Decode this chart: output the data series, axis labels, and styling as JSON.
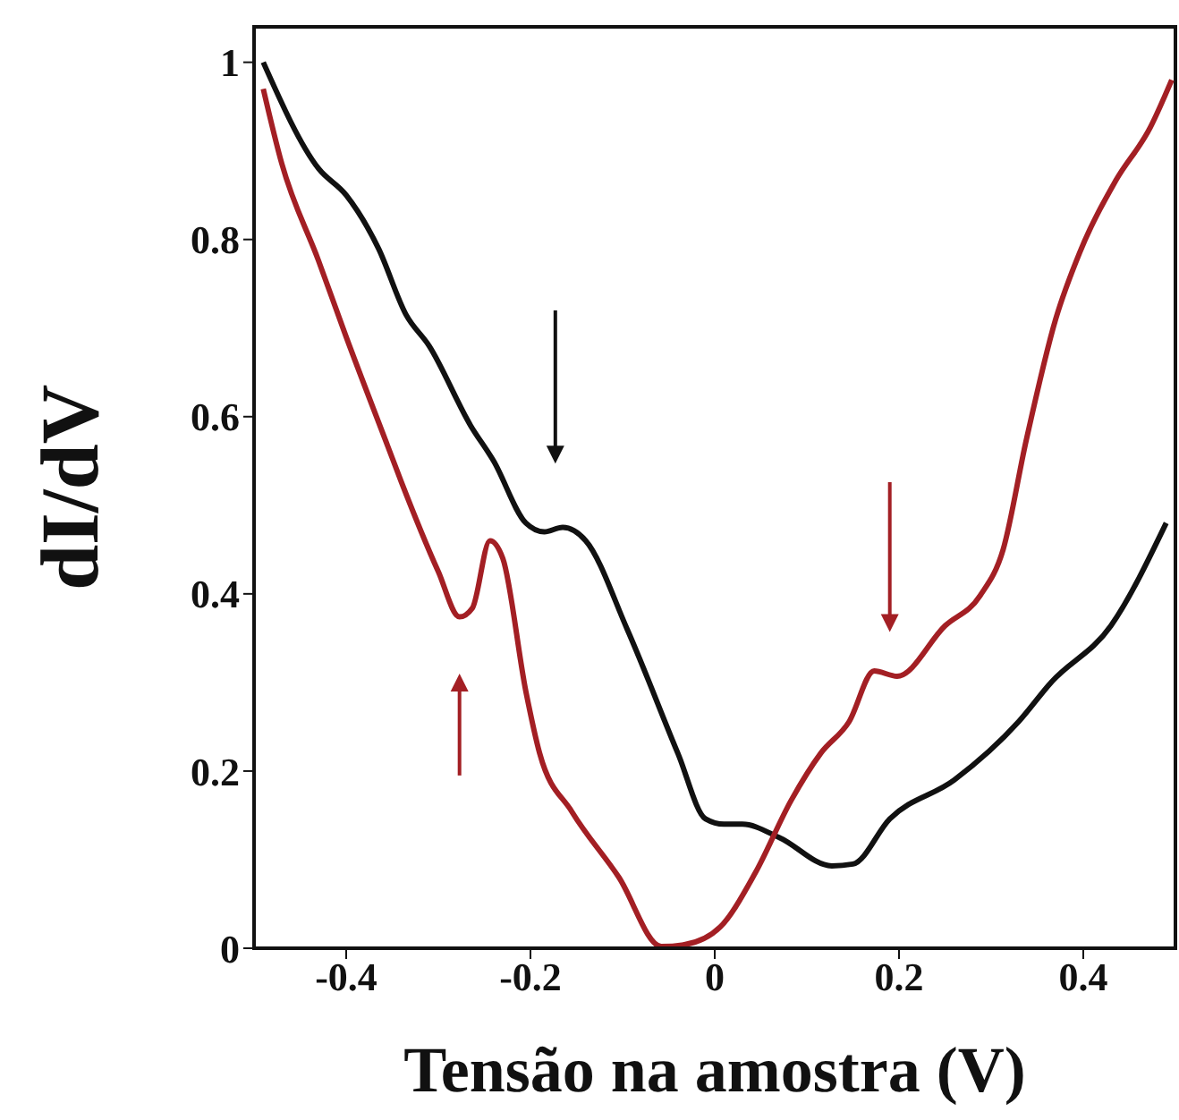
{
  "chart_data": {
    "type": "line",
    "xlabel": "Tensão na amostra (V)",
    "ylabel": "dI/dV",
    "xlim": [
      -0.5,
      0.5
    ],
    "ylim": [
      0,
      1.04
    ],
    "xticks": [
      -0.4,
      -0.2,
      0,
      0.2,
      0.4
    ],
    "yticks": [
      0,
      0.2,
      0.4,
      0.6,
      0.8,
      1
    ],
    "marker": "none",
    "line_style": "solid",
    "series": [
      {
        "color": "#111111",
        "x": [
          -0.49,
          -0.43,
          -0.4,
          -0.365,
          -0.335,
          -0.31,
          -0.265,
          -0.24,
          -0.205,
          -0.185,
          -0.165,
          -0.14,
          -0.095,
          -0.04,
          -0.01,
          0.01,
          0.03,
          0.07,
          0.127,
          0.15,
          0.19,
          0.26,
          0.33,
          0.365,
          0.43,
          0.49
        ],
        "values": [
          1.0,
          0.88,
          0.85,
          0.79,
          0.715,
          0.68,
          0.59,
          0.55,
          0.48,
          0.47,
          0.475,
          0.46,
          0.36,
          0.22,
          0.146,
          0.14,
          0.14,
          0.125,
          0.093,
          0.095,
          0.146,
          0.19,
          0.256,
          0.3,
          0.364,
          0.48
        ]
      },
      {
        "color": "#a31f24",
        "x": [
          -0.49,
          -0.47,
          -0.43,
          -0.4,
          -0.355,
          -0.34,
          -0.3,
          -0.277,
          -0.263,
          -0.244,
          -0.23,
          -0.205,
          -0.19,
          -0.155,
          -0.104,
          -0.058,
          -0.033,
          0.006,
          0.044,
          0.083,
          0.115,
          0.146,
          0.173,
          0.198,
          0.25,
          0.288,
          0.313,
          0.338,
          0.37,
          0.396,
          0.435,
          0.473,
          0.496
        ],
        "values": [
          0.97,
          0.886,
          0.776,
          0.69,
          0.567,
          0.526,
          0.425,
          0.374,
          0.384,
          0.46,
          0.44,
          0.29,
          0.22,
          0.154,
          0.08,
          0.002,
          0.004,
          0.024,
          0.085,
          0.167,
          0.22,
          0.256,
          0.313,
          0.307,
          0.364,
          0.398,
          0.45,
          0.573,
          0.71,
          0.785,
          0.866,
          0.927,
          0.98
        ]
      }
    ]
  }
}
